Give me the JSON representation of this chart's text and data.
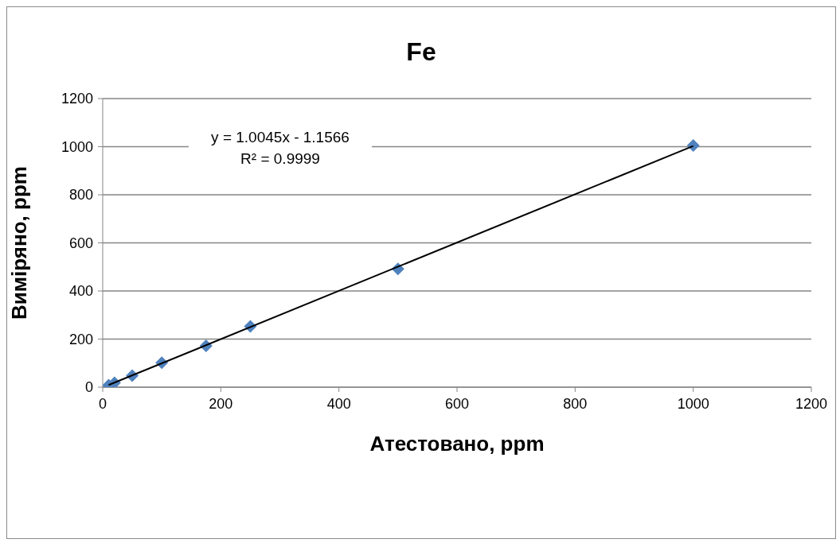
{
  "chart_data": {
    "type": "scatter",
    "title": "Fe",
    "xlabel": "Атестовано, ppm",
    "ylabel": "Виміряно, ppm",
    "series": [
      {
        "type": "scatter",
        "color": "#4f81bd",
        "marker": "diamond",
        "x": [
          10,
          20,
          50,
          100,
          175,
          250,
          500,
          1000
        ],
        "values": [
          8,
          18,
          48,
          102,
          172,
          253,
          492,
          1005
        ]
      },
      {
        "type": "line",
        "color": "#000000",
        "marker": "none",
        "x": [
          10,
          1000
        ],
        "values": [
          9,
          1003
        ]
      }
    ],
    "annotations": [
      "y = 1.0045x - 1.1566",
      "R² = 0.9999"
    ],
    "xlim": [
      0,
      1200
    ],
    "xticks": [
      0,
      200,
      400,
      600,
      800,
      1000,
      1200
    ],
    "ylim": [
      0,
      1200
    ],
    "yticks": [
      0,
      200,
      400,
      600,
      800,
      1000,
      1200
    ],
    "grid": "y"
  }
}
